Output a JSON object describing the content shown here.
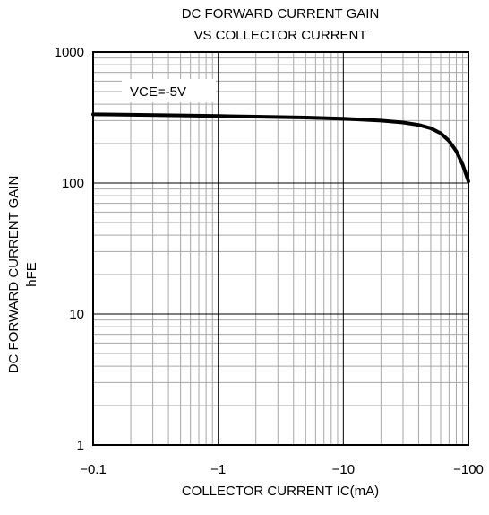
{
  "chart_data": {
    "type": "line",
    "title_line1": "DC FORWARD CURRENT GAIN",
    "title_line2": "VS COLLECTOR CURRENT",
    "ylabel_line1": "DC FORWARD CURRENT GAIN",
    "ylabel_line2": "hFE",
    "xlabel": "COLLECTOR CURRENT  IC(mA)",
    "annotation": "VCE=-5V",
    "x_scale": "log",
    "y_scale": "log",
    "xlim": [
      -0.1,
      -100
    ],
    "ylim": [
      1,
      1000
    ],
    "x_ticks": [
      "-0.1",
      "-1",
      "-10",
      "-100"
    ],
    "y_ticks": [
      "1",
      "10",
      "100",
      "1000"
    ],
    "grid": true,
    "series": [
      {
        "x": [
          -0.1,
          -0.2,
          -0.5,
          -1,
          -2,
          -5,
          -10,
          -20,
          -30,
          -40,
          -50,
          -60,
          -70,
          -80,
          -90,
          -100
        ],
        "y": [
          335,
          332,
          328,
          325,
          321,
          316,
          310,
          300,
          290,
          278,
          262,
          240,
          210,
          175,
          138,
          103
        ]
      }
    ]
  }
}
